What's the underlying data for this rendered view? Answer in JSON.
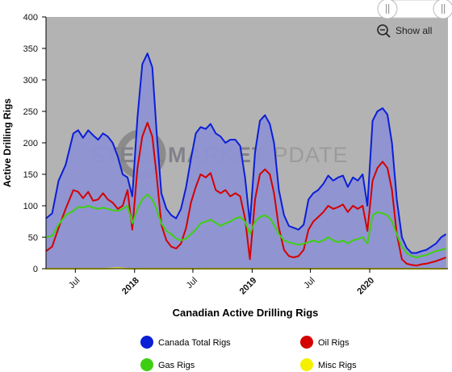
{
  "ui": {
    "show_all_label": "Show all",
    "watermark_left": "STEEL",
    "watermark_mid": "MARKET",
    "watermark_right": "UPDATE"
  },
  "colors": {
    "plot_bg": "#b3b3b3",
    "total": "#0a1fd6",
    "total_fill": "#8e92d3",
    "oil": "#d40000",
    "gas": "#3fcf12",
    "misc": "#f5f000"
  },
  "chart_data": {
    "type": "line",
    "title": "",
    "xlabel": "Canadian Active Drilling Rigs",
    "ylabel": "Active Drilling Rigs",
    "ylim": [
      0,
      400
    ],
    "yticks": [
      0,
      50,
      100,
      150,
      200,
      250,
      300,
      350,
      400
    ],
    "xlim": [
      "2017-04-01",
      "2020-08-31"
    ],
    "xticks": [
      {
        "date": "2017-07-01",
        "label": "Jul",
        "major": false
      },
      {
        "date": "2018-01-01",
        "label": "2018",
        "major": true
      },
      {
        "date": "2018-07-01",
        "label": "Jul",
        "major": false
      },
      {
        "date": "2019-01-01",
        "label": "2019",
        "major": true
      },
      {
        "date": "2019-07-01",
        "label": "Jul",
        "major": false
      },
      {
        "date": "2020-01-01",
        "label": "2020",
        "major": true
      }
    ],
    "grid": false,
    "legend": "bottom",
    "series": [
      {
        "name": "Canada Total Rigs",
        "color": "#0a1fd6",
        "area": true,
        "points": [
          [
            "2017-04-01",
            80
          ],
          [
            "2017-04-20",
            88
          ],
          [
            "2017-05-10",
            140
          ],
          [
            "2017-06-01",
            165
          ],
          [
            "2017-06-25",
            215
          ],
          [
            "2017-07-10",
            220
          ],
          [
            "2017-07-25",
            208
          ],
          [
            "2017-08-10",
            220
          ],
          [
            "2017-08-25",
            212
          ],
          [
            "2017-09-10",
            205
          ],
          [
            "2017-09-25",
            215
          ],
          [
            "2017-10-10",
            210
          ],
          [
            "2017-10-25",
            200
          ],
          [
            "2017-11-10",
            178
          ],
          [
            "2017-11-25",
            150
          ],
          [
            "2017-12-10",
            145
          ],
          [
            "2017-12-25",
            115
          ],
          [
            "2018-01-10",
            240
          ],
          [
            "2018-01-25",
            325
          ],
          [
            "2018-02-10",
            342
          ],
          [
            "2018-02-25",
            320
          ],
          [
            "2018-03-10",
            220
          ],
          [
            "2018-03-25",
            120
          ],
          [
            "2018-04-10",
            95
          ],
          [
            "2018-04-25",
            85
          ],
          [
            "2018-05-10",
            80
          ],
          [
            "2018-05-25",
            95
          ],
          [
            "2018-06-10",
            130
          ],
          [
            "2018-06-25",
            175
          ],
          [
            "2018-07-10",
            215
          ],
          [
            "2018-07-25",
            225
          ],
          [
            "2018-08-10",
            222
          ],
          [
            "2018-08-25",
            230
          ],
          [
            "2018-09-10",
            215
          ],
          [
            "2018-09-25",
            210
          ],
          [
            "2018-10-10",
            200
          ],
          [
            "2018-10-25",
            205
          ],
          [
            "2018-11-10",
            205
          ],
          [
            "2018-11-25",
            195
          ],
          [
            "2018-12-10",
            145
          ],
          [
            "2018-12-25",
            72
          ],
          [
            "2019-01-10",
            185
          ],
          [
            "2019-01-25",
            235
          ],
          [
            "2019-02-10",
            244
          ],
          [
            "2019-02-25",
            230
          ],
          [
            "2019-03-10",
            200
          ],
          [
            "2019-03-25",
            125
          ],
          [
            "2019-04-10",
            85
          ],
          [
            "2019-04-25",
            68
          ],
          [
            "2019-05-10",
            65
          ],
          [
            "2019-05-25",
            62
          ],
          [
            "2019-06-10",
            70
          ],
          [
            "2019-06-25",
            110
          ],
          [
            "2019-07-10",
            120
          ],
          [
            "2019-07-25",
            125
          ],
          [
            "2019-08-10",
            135
          ],
          [
            "2019-08-25",
            148
          ],
          [
            "2019-09-10",
            140
          ],
          [
            "2019-09-25",
            145
          ],
          [
            "2019-10-10",
            148
          ],
          [
            "2019-10-25",
            130
          ],
          [
            "2019-11-10",
            145
          ],
          [
            "2019-11-25",
            140
          ],
          [
            "2019-12-10",
            150
          ],
          [
            "2019-12-25",
            100
          ],
          [
            "2020-01-10",
            235
          ],
          [
            "2020-01-25",
            250
          ],
          [
            "2020-02-10",
            255
          ],
          [
            "2020-02-25",
            245
          ],
          [
            "2020-03-10",
            200
          ],
          [
            "2020-03-25",
            110
          ],
          [
            "2020-04-10",
            50
          ],
          [
            "2020-04-25",
            33
          ],
          [
            "2020-05-10",
            25
          ],
          [
            "2020-05-25",
            25
          ],
          [
            "2020-06-10",
            28
          ],
          [
            "2020-06-25",
            30
          ],
          [
            "2020-07-10",
            35
          ],
          [
            "2020-07-25",
            40
          ],
          [
            "2020-08-10",
            50
          ],
          [
            "2020-08-25",
            55
          ]
        ]
      },
      {
        "name": "Oil Rigs",
        "color": "#d40000",
        "area": false,
        "points": [
          [
            "2017-04-01",
            28
          ],
          [
            "2017-04-20",
            35
          ],
          [
            "2017-05-10",
            65
          ],
          [
            "2017-06-01",
            95
          ],
          [
            "2017-06-25",
            125
          ],
          [
            "2017-07-10",
            122
          ],
          [
            "2017-07-25",
            112
          ],
          [
            "2017-08-10",
            122
          ],
          [
            "2017-08-25",
            108
          ],
          [
            "2017-09-10",
            110
          ],
          [
            "2017-09-25",
            120
          ],
          [
            "2017-10-10",
            110
          ],
          [
            "2017-10-25",
            105
          ],
          [
            "2017-11-10",
            95
          ],
          [
            "2017-11-25",
            100
          ],
          [
            "2017-12-10",
            125
          ],
          [
            "2017-12-25",
            62
          ],
          [
            "2018-01-10",
            160
          ],
          [
            "2018-01-25",
            210
          ],
          [
            "2018-02-10",
            232
          ],
          [
            "2018-02-25",
            210
          ],
          [
            "2018-03-10",
            150
          ],
          [
            "2018-03-25",
            70
          ],
          [
            "2018-04-10",
            45
          ],
          [
            "2018-04-25",
            35
          ],
          [
            "2018-05-10",
            32
          ],
          [
            "2018-05-25",
            40
          ],
          [
            "2018-06-10",
            65
          ],
          [
            "2018-06-25",
            105
          ],
          [
            "2018-07-10",
            130
          ],
          [
            "2018-07-25",
            150
          ],
          [
            "2018-08-10",
            145
          ],
          [
            "2018-08-25",
            152
          ],
          [
            "2018-09-10",
            125
          ],
          [
            "2018-09-25",
            120
          ],
          [
            "2018-10-10",
            125
          ],
          [
            "2018-10-25",
            115
          ],
          [
            "2018-11-10",
            120
          ],
          [
            "2018-11-25",
            115
          ],
          [
            "2018-12-10",
            80
          ],
          [
            "2018-12-25",
            15
          ],
          [
            "2019-01-10",
            110
          ],
          [
            "2019-01-25",
            150
          ],
          [
            "2019-02-10",
            158
          ],
          [
            "2019-02-25",
            150
          ],
          [
            "2019-03-10",
            120
          ],
          [
            "2019-03-25",
            65
          ],
          [
            "2019-04-10",
            30
          ],
          [
            "2019-04-25",
            20
          ],
          [
            "2019-05-10",
            18
          ],
          [
            "2019-05-25",
            20
          ],
          [
            "2019-06-10",
            30
          ],
          [
            "2019-06-25",
            62
          ],
          [
            "2019-07-10",
            75
          ],
          [
            "2019-07-25",
            82
          ],
          [
            "2019-08-10",
            90
          ],
          [
            "2019-08-25",
            100
          ],
          [
            "2019-09-10",
            95
          ],
          [
            "2019-09-25",
            98
          ],
          [
            "2019-10-10",
            102
          ],
          [
            "2019-10-25",
            90
          ],
          [
            "2019-11-10",
            100
          ],
          [
            "2019-11-25",
            95
          ],
          [
            "2019-12-10",
            100
          ],
          [
            "2019-12-25",
            60
          ],
          [
            "2020-01-10",
            140
          ],
          [
            "2020-01-25",
            160
          ],
          [
            "2020-02-10",
            170
          ],
          [
            "2020-02-25",
            160
          ],
          [
            "2020-03-10",
            125
          ],
          [
            "2020-03-25",
            55
          ],
          [
            "2020-04-10",
            15
          ],
          [
            "2020-04-25",
            8
          ],
          [
            "2020-05-10",
            6
          ],
          [
            "2020-05-25",
            5
          ],
          [
            "2020-06-10",
            7
          ],
          [
            "2020-06-25",
            8
          ],
          [
            "2020-07-10",
            10
          ],
          [
            "2020-07-25",
            12
          ],
          [
            "2020-08-10",
            15
          ],
          [
            "2020-08-25",
            18
          ]
        ]
      },
      {
        "name": "Gas Rigs",
        "color": "#3fcf12",
        "area": false,
        "points": [
          [
            "2017-04-01",
            50
          ],
          [
            "2017-04-20",
            52
          ],
          [
            "2017-05-10",
            70
          ],
          [
            "2017-06-01",
            85
          ],
          [
            "2017-06-25",
            92
          ],
          [
            "2017-07-10",
            98
          ],
          [
            "2017-07-25",
            97
          ],
          [
            "2017-08-10",
            100
          ],
          [
            "2017-08-25",
            97
          ],
          [
            "2017-09-10",
            95
          ],
          [
            "2017-09-25",
            97
          ],
          [
            "2017-10-10",
            95
          ],
          [
            "2017-10-25",
            93
          ],
          [
            "2017-11-10",
            92
          ],
          [
            "2017-11-25",
            95
          ],
          [
            "2017-12-10",
            100
          ],
          [
            "2017-12-25",
            72
          ],
          [
            "2018-01-10",
            95
          ],
          [
            "2018-01-25",
            110
          ],
          [
            "2018-02-10",
            118
          ],
          [
            "2018-02-25",
            110
          ],
          [
            "2018-03-10",
            95
          ],
          [
            "2018-03-25",
            72
          ],
          [
            "2018-04-10",
            60
          ],
          [
            "2018-04-25",
            55
          ],
          [
            "2018-05-10",
            48
          ],
          [
            "2018-05-25",
            45
          ],
          [
            "2018-06-10",
            48
          ],
          [
            "2018-06-25",
            55
          ],
          [
            "2018-07-10",
            62
          ],
          [
            "2018-07-25",
            72
          ],
          [
            "2018-08-10",
            75
          ],
          [
            "2018-08-25",
            78
          ],
          [
            "2018-09-10",
            73
          ],
          [
            "2018-09-25",
            68
          ],
          [
            "2018-10-10",
            72
          ],
          [
            "2018-10-25",
            75
          ],
          [
            "2018-11-10",
            80
          ],
          [
            "2018-11-25",
            82
          ],
          [
            "2018-12-10",
            75
          ],
          [
            "2018-12-25",
            55
          ],
          [
            "2019-01-10",
            75
          ],
          [
            "2019-01-25",
            82
          ],
          [
            "2019-02-10",
            85
          ],
          [
            "2019-02-25",
            80
          ],
          [
            "2019-03-10",
            70
          ],
          [
            "2019-03-25",
            55
          ],
          [
            "2019-04-10",
            45
          ],
          [
            "2019-04-25",
            42
          ],
          [
            "2019-05-10",
            40
          ],
          [
            "2019-05-25",
            38
          ],
          [
            "2019-06-10",
            40
          ],
          [
            "2019-06-25",
            42
          ],
          [
            "2019-07-10",
            45
          ],
          [
            "2019-07-25",
            42
          ],
          [
            "2019-08-10",
            45
          ],
          [
            "2019-08-25",
            50
          ],
          [
            "2019-09-10",
            45
          ],
          [
            "2019-09-25",
            42
          ],
          [
            "2019-10-10",
            45
          ],
          [
            "2019-10-25",
            40
          ],
          [
            "2019-11-10",
            45
          ],
          [
            "2019-11-25",
            47
          ],
          [
            "2019-12-10",
            50
          ],
          [
            "2019-12-25",
            40
          ],
          [
            "2020-01-10",
            85
          ],
          [
            "2020-01-25",
            90
          ],
          [
            "2020-02-10",
            88
          ],
          [
            "2020-02-25",
            85
          ],
          [
            "2020-03-10",
            75
          ],
          [
            "2020-03-25",
            55
          ],
          [
            "2020-04-10",
            35
          ],
          [
            "2020-04-25",
            25
          ],
          [
            "2020-05-10",
            20
          ],
          [
            "2020-05-25",
            18
          ],
          [
            "2020-06-10",
            20
          ],
          [
            "2020-06-25",
            22
          ],
          [
            "2020-07-10",
            25
          ],
          [
            "2020-07-25",
            28
          ],
          [
            "2020-08-10",
            30
          ],
          [
            "2020-08-25",
            32
          ]
        ]
      },
      {
        "name": "Misc Rigs",
        "color": "#f5f000",
        "area": false,
        "points": [
          [
            "2017-04-01",
            0
          ],
          [
            "2017-10-01",
            0
          ],
          [
            "2017-11-10",
            1
          ],
          [
            "2017-12-10",
            0
          ],
          [
            "2018-06-01",
            0
          ],
          [
            "2019-01-01",
            0
          ],
          [
            "2019-07-01",
            0
          ],
          [
            "2020-01-01",
            0
          ],
          [
            "2020-08-25",
            0
          ]
        ]
      }
    ]
  }
}
